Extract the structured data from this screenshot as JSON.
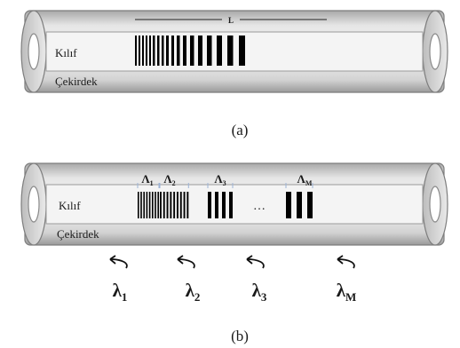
{
  "panel_a": {
    "length_label": "L",
    "cladding_label": "Kılıf",
    "core_label": "Çekirdek",
    "caption": "(a)",
    "grating_period_widths": [
      2.0,
      2.0,
      2.0,
      2.0,
      2.0,
      2.5,
      2.5,
      2.5,
      3.0,
      3.0,
      3.5,
      4.0,
      4.5,
      5.0,
      5.5,
      6.0,
      6.5,
      7.0
    ]
  },
  "panel_b": {
    "cladding_label": "Kılıf",
    "core_label": "Çekirdek",
    "caption": "(b)",
    "ellipsis": "…",
    "gratings": [
      {
        "period_symbol": "Λ",
        "period_index": "1",
        "wavelength_symbol": "λ",
        "wavelength_index": "1",
        "bar_width": 1.6
      },
      {
        "period_symbol": "Λ",
        "period_index": "2",
        "wavelength_symbol": "λ",
        "wavelength_index": "2",
        "bar_width": 1.9
      },
      {
        "period_symbol": "Λ",
        "period_index": "3",
        "wavelength_symbol": "λ",
        "wavelength_index": "3",
        "bar_width": 4.0
      },
      {
        "period_symbol": "Λ",
        "period_index": "M",
        "wavelength_symbol": "λ",
        "wavelength_index": "M",
        "bar_width": 6.0
      }
    ]
  },
  "colors": {
    "tube_light": "#e4e4e4",
    "tube_dark": "#8a8a8a",
    "core_fill": "#f4f4f4",
    "grating_bar": "#000000",
    "marker": "#9db3d6"
  }
}
